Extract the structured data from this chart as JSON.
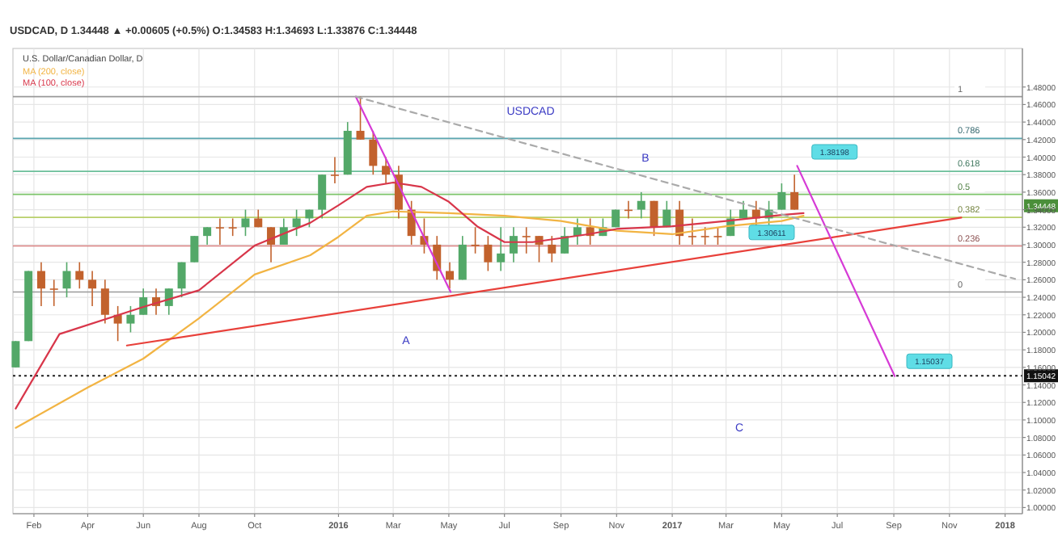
{
  "chart_data": {
    "type": "candlestick",
    "title": "U.S. Dollar/Canadian Dollar, D",
    "subtitle": "USDCAD, D 1.34448 ▲ +0.00605 (+0.5%) O:1.34583 H:1.34693 L:1.33876 C:1.34448",
    "x": [
      "2015-01-12",
      "2015-01-26",
      "2015-02-09",
      "2015-02-23",
      "2015-03-09",
      "2015-03-23",
      "2015-04-06",
      "2015-04-20",
      "2015-05-04",
      "2015-05-18",
      "2015-06-01",
      "2015-06-15",
      "2015-06-29",
      "2015-07-13",
      "2015-07-27",
      "2015-08-10",
      "2015-08-24",
      "2015-09-07",
      "2015-09-21",
      "2015-10-05",
      "2015-10-19",
      "2015-11-02",
      "2015-11-16",
      "2015-11-30",
      "2015-12-14",
      "2015-12-28",
      "2016-01-11",
      "2016-01-25",
      "2016-02-08",
      "2016-02-22",
      "2016-03-07",
      "2016-03-21",
      "2016-04-04",
      "2016-04-18",
      "2016-05-02",
      "2016-05-16",
      "2016-05-30",
      "2016-06-13",
      "2016-06-27",
      "2016-07-11",
      "2016-07-25",
      "2016-08-08",
      "2016-08-22",
      "2016-09-05",
      "2016-09-19",
      "2016-10-03",
      "2016-10-17",
      "2016-10-31",
      "2016-11-14",
      "2016-11-28",
      "2016-12-12",
      "2016-12-26",
      "2017-01-09",
      "2017-01-23",
      "2017-02-06",
      "2017-02-20",
      "2017-03-06",
      "2017-03-20",
      "2017-04-03",
      "2017-04-17",
      "2017-05-01",
      "2017-05-15"
    ],
    "ohlc": [
      [
        1.16,
        1.19,
        1.16,
        1.19
      ],
      [
        1.19,
        1.27,
        1.19,
        1.27
      ],
      [
        1.27,
        1.28,
        1.23,
        1.25
      ],
      [
        1.25,
        1.26,
        1.23,
        1.25
      ],
      [
        1.25,
        1.28,
        1.24,
        1.27
      ],
      [
        1.27,
        1.28,
        1.25,
        1.26
      ],
      [
        1.26,
        1.27,
        1.23,
        1.25
      ],
      [
        1.25,
        1.26,
        1.21,
        1.22
      ],
      [
        1.22,
        1.23,
        1.19,
        1.21
      ],
      [
        1.21,
        1.23,
        1.2,
        1.22
      ],
      [
        1.22,
        1.25,
        1.22,
        1.24
      ],
      [
        1.24,
        1.25,
        1.22,
        1.23
      ],
      [
        1.23,
        1.25,
        1.22,
        1.25
      ],
      [
        1.25,
        1.28,
        1.24,
        1.28
      ],
      [
        1.28,
        1.31,
        1.28,
        1.31
      ],
      [
        1.31,
        1.32,
        1.3,
        1.32
      ],
      [
        1.32,
        1.33,
        1.3,
        1.32
      ],
      [
        1.32,
        1.33,
        1.31,
        1.32
      ],
      [
        1.32,
        1.34,
        1.31,
        1.33
      ],
      [
        1.33,
        1.34,
        1.32,
        1.32
      ],
      [
        1.32,
        1.32,
        1.28,
        1.3
      ],
      [
        1.3,
        1.33,
        1.3,
        1.32
      ],
      [
        1.32,
        1.34,
        1.31,
        1.33
      ],
      [
        1.33,
        1.34,
        1.32,
        1.34
      ],
      [
        1.34,
        1.38,
        1.33,
        1.38
      ],
      [
        1.38,
        1.4,
        1.37,
        1.38
      ],
      [
        1.38,
        1.44,
        1.38,
        1.43
      ],
      [
        1.43,
        1.469,
        1.42,
        1.42
      ],
      [
        1.42,
        1.43,
        1.38,
        1.39
      ],
      [
        1.39,
        1.4,
        1.37,
        1.38
      ],
      [
        1.38,
        1.39,
        1.33,
        1.34
      ],
      [
        1.34,
        1.35,
        1.3,
        1.31
      ],
      [
        1.31,
        1.33,
        1.29,
        1.3
      ],
      [
        1.3,
        1.31,
        1.26,
        1.27
      ],
      [
        1.27,
        1.28,
        1.25,
        1.26
      ],
      [
        1.26,
        1.31,
        1.26,
        1.3
      ],
      [
        1.3,
        1.32,
        1.29,
        1.3
      ],
      [
        1.3,
        1.31,
        1.27,
        1.28
      ],
      [
        1.28,
        1.32,
        1.27,
        1.29
      ],
      [
        1.29,
        1.32,
        1.28,
        1.31
      ],
      [
        1.31,
        1.32,
        1.29,
        1.31
      ],
      [
        1.31,
        1.31,
        1.28,
        1.3
      ],
      [
        1.3,
        1.31,
        1.28,
        1.29
      ],
      [
        1.29,
        1.32,
        1.29,
        1.31
      ],
      [
        1.31,
        1.33,
        1.3,
        1.32
      ],
      [
        1.32,
        1.33,
        1.3,
        1.31
      ],
      [
        1.31,
        1.33,
        1.31,
        1.32
      ],
      [
        1.32,
        1.34,
        1.32,
        1.34
      ],
      [
        1.34,
        1.35,
        1.33,
        1.34
      ],
      [
        1.34,
        1.36,
        1.33,
        1.35
      ],
      [
        1.35,
        1.35,
        1.31,
        1.32
      ],
      [
        1.32,
        1.35,
        1.32,
        1.34
      ],
      [
        1.34,
        1.35,
        1.3,
        1.31
      ],
      [
        1.31,
        1.33,
        1.3,
        1.31
      ],
      [
        1.31,
        1.32,
        1.3,
        1.31
      ],
      [
        1.31,
        1.32,
        1.3,
        1.31
      ],
      [
        1.31,
        1.34,
        1.31,
        1.33
      ],
      [
        1.33,
        1.35,
        1.33,
        1.34
      ],
      [
        1.34,
        1.35,
        1.32,
        1.33
      ],
      [
        1.33,
        1.35,
        1.32,
        1.34
      ],
      [
        1.34,
        1.37,
        1.34,
        1.36
      ],
      [
        1.36,
        1.38,
        1.34,
        1.34
      ]
    ],
    "colors": [
      "#53a868",
      "#53a868",
      "#c2622d",
      "#c2622d",
      "#53a868",
      "#c2622d",
      "#c2622d",
      "#c2622d",
      "#c2622d",
      "#53a868",
      "#53a868",
      "#c2622d",
      "#53a868",
      "#53a868",
      "#53a868",
      "#53a868",
      "#c2622d",
      "#c2622d",
      "#53a868",
      "#c2622d",
      "#c2622d",
      "#53a868",
      "#53a868",
      "#53a868",
      "#53a868",
      "#c2622d",
      "#53a868",
      "#c2622d",
      "#c2622d",
      "#c2622d",
      "#c2622d",
      "#c2622d",
      "#c2622d",
      "#c2622d",
      "#c2622d",
      "#53a868",
      "#c2622d",
      "#c2622d",
      "#53a868",
      "#53a868",
      "#c2622d",
      "#c2622d",
      "#c2622d",
      "#53a868",
      "#53a868",
      "#c2622d",
      "#53a868",
      "#53a868",
      "#c2622d",
      "#53a868",
      "#c2622d",
      "#53a868",
      "#c2622d",
      "#c2622d",
      "#c2622d",
      "#c2622d",
      "#53a868",
      "#53a868",
      "#c2622d",
      "#53a868",
      "#53a868",
      "#c2622d"
    ],
    "series": [
      {
        "name": "MA (200, close)",
        "type": "line",
        "color": "#f2b443",
        "x": [
          "2015-01-12",
          "2015-04-01",
          "2015-06-01",
          "2015-08-01",
          "2015-10-01",
          "2015-12-01",
          "2016-01-01",
          "2016-02-01",
          "2016-03-01",
          "2016-05-01",
          "2016-07-01",
          "2016-09-01",
          "2016-11-01",
          "2017-01-01",
          "2017-03-01",
          "2017-05-01",
          "2017-05-25"
        ],
        "values": [
          1.091,
          1.137,
          1.17,
          1.216,
          1.266,
          1.288,
          1.309,
          1.333,
          1.338,
          1.336,
          1.333,
          1.327,
          1.316,
          1.312,
          1.321,
          1.327,
          1.333
        ]
      },
      {
        "name": "MA (100, close)",
        "type": "line",
        "color": "#d8364a",
        "x": [
          "2015-01-12",
          "2015-03-01",
          "2015-06-01",
          "2015-08-01",
          "2015-10-01",
          "2015-12-01",
          "2016-01-01",
          "2016-02-01",
          "2016-03-01",
          "2016-04-01",
          "2016-05-01",
          "2016-06-01",
          "2016-07-01",
          "2016-08-01",
          "2016-10-01",
          "2016-11-01",
          "2017-01-01",
          "2017-03-01",
          "2017-05-01",
          "2017-05-25"
        ],
        "values": [
          1.113,
          1.198,
          1.229,
          1.248,
          1.299,
          1.325,
          1.345,
          1.366,
          1.371,
          1.366,
          1.349,
          1.321,
          1.303,
          1.303,
          1.312,
          1.318,
          1.321,
          1.327,
          1.334,
          1.336
        ]
      },
      {
        "type": "line",
        "color": "#e8403a",
        "x": [
          "2015-05-14",
          "2017-11-14"
        ],
        "values": [
          1.185,
          1.331
        ]
      },
      {
        "type": "line",
        "color": "#d63bd6",
        "x": [
          "2016-01-20",
          "2016-05-03"
        ],
        "values": [
          1.469,
          1.246
        ]
      },
      {
        "type": "line",
        "color": "#d63bd6",
        "x": [
          "2017-05-18",
          "2017-09-02"
        ],
        "values": [
          1.39,
          1.15
        ]
      },
      {
        "type": "line",
        "color": "#aaaaaa",
        "line_style": "dashed",
        "x": [
          "2016-01-20",
          "2018-01-12"
        ],
        "values": [
          1.469,
          1.261
        ]
      }
    ],
    "ref_lines": [
      {
        "axis": "y",
        "value": 1.469,
        "color": "#9a9a9a"
      },
      {
        "axis": "y",
        "value": 1.4213,
        "color": "#5aa6b0"
      },
      {
        "axis": "y",
        "value": 1.3838,
        "color": "#6bbf9a"
      },
      {
        "axis": "y",
        "value": 1.3575,
        "color": "#7cc46a"
      },
      {
        "axis": "y",
        "value": 1.3312,
        "color": "#b8cf6a"
      },
      {
        "axis": "y",
        "value": 1.2986,
        "color": "#d98080"
      },
      {
        "axis": "y",
        "value": 1.246,
        "color": "#9a9a9a"
      },
      {
        "axis": "y",
        "value": 1.15042,
        "label": "1.15042",
        "color": "#222222",
        "line_style": "dotted"
      }
    ],
    "annotations": [
      "USDCAD",
      "B",
      "A",
      "C",
      {
        "text": "1.38198",
        "x": "2017-06-28",
        "y": 1.406
      },
      {
        "text": "1.30611",
        "x": "2017-04-20",
        "y": 1.314
      },
      {
        "text": "1.15037",
        "x": "2017-10-10",
        "y": 1.167
      },
      {
        "text": "1.34448",
        "y": 1.34448
      },
      {
        "text": "1",
        "x": "2017-11-10",
        "y": 1.469
      },
      {
        "text": "0.786",
        "x": "2017-11-10",
        "y": 1.4213
      },
      {
        "text": "0.618",
        "x": "2017-11-10",
        "y": 1.3838
      },
      {
        "text": "0.5",
        "x": "2017-11-10",
        "y": 1.3575
      },
      {
        "text": "0.382",
        "x": "2017-11-10",
        "y": 1.3312
      },
      {
        "text": "0.236",
        "x": "2017-11-10",
        "y": 1.2986
      },
      {
        "text": "0",
        "x": "2017-11-10",
        "y": 1.246
      }
    ],
    "xlim": [
      "2015-01-09",
      "2018-01-20"
    ],
    "xticks": [
      {
        "value": "2015-02-01",
        "label": "Feb"
      },
      {
        "value": "2015-04-01",
        "label": "Apr"
      },
      {
        "value": "2015-06-01",
        "label": "Jun"
      },
      {
        "value": "2015-08-01",
        "label": "Aug"
      },
      {
        "value": "2015-10-01",
        "label": "Oct"
      },
      {
        "value": "2016-01-01",
        "label": "2016"
      },
      {
        "value": "2016-03-01",
        "label": "Mar"
      },
      {
        "value": "2016-05-01",
        "label": "May"
      },
      {
        "value": "2016-07-01",
        "label": "Jul"
      },
      {
        "value": "2016-09-01",
        "label": "Sep"
      },
      {
        "value": "2016-11-01",
        "label": "Nov"
      },
      {
        "value": "2017-01-01",
        "label": "2017"
      },
      {
        "value": "2017-03-01",
        "label": "Mar"
      },
      {
        "value": "2017-05-01",
        "label": "May"
      },
      {
        "value": "2017-07-01",
        "label": "Jul"
      },
      {
        "value": "2017-09-01",
        "label": "Sep"
      },
      {
        "value": "2017-11-01",
        "label": "Nov"
      },
      {
        "value": "2018-01-01",
        "label": "2018"
      }
    ],
    "ylim": [
      0.993,
      1.524
    ],
    "yticks": [
      {
        "value": 1.0,
        "label": "1.00000"
      },
      {
        "value": 1.02,
        "label": "1.02000"
      },
      {
        "value": 1.04,
        "label": "1.04000"
      },
      {
        "value": 1.06,
        "label": "1.06000"
      },
      {
        "value": 1.08,
        "label": "1.08000"
      },
      {
        "value": 1.1,
        "label": "1.10000"
      },
      {
        "value": 1.12,
        "label": "1.12000"
      },
      {
        "value": 1.14,
        "label": "1.14000"
      },
      {
        "value": 1.16,
        "label": "1.16000"
      },
      {
        "value": 1.18,
        "label": "1.18000"
      },
      {
        "value": 1.2,
        "label": "1.20000"
      },
      {
        "value": 1.22,
        "label": "1.22000"
      },
      {
        "value": 1.24,
        "label": "1.24000"
      },
      {
        "value": 1.26,
        "label": "1.26000"
      },
      {
        "value": 1.28,
        "label": "1.28000"
      },
      {
        "value": 1.3,
        "label": "1.30000"
      },
      {
        "value": 1.32,
        "label": "1.32000"
      },
      {
        "value": 1.34,
        "label": "1.34000"
      },
      {
        "value": 1.36,
        "label": "1.36000"
      },
      {
        "value": 1.38,
        "label": "1.38000"
      },
      {
        "value": 1.4,
        "label": "1.40000"
      },
      {
        "value": 1.42,
        "label": "1.42000"
      },
      {
        "value": 1.44,
        "label": "1.44000"
      },
      {
        "value": 1.46,
        "label": "1.46000"
      },
      {
        "value": 1.48,
        "label": "1.48000"
      }
    ],
    "grid": true,
    "legend": "top left"
  }
}
